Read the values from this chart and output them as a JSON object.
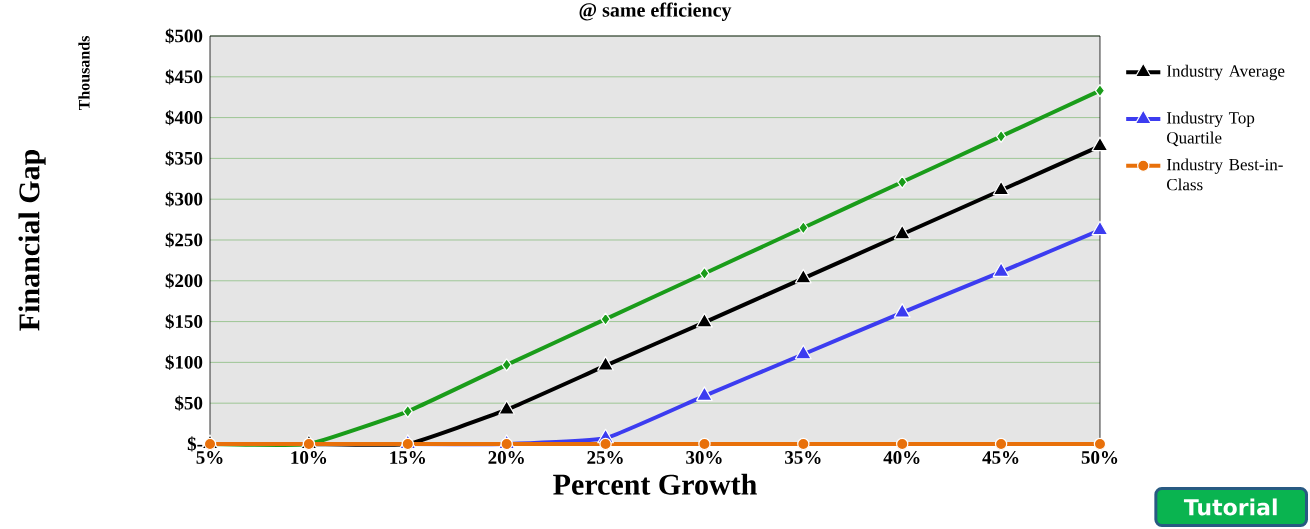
{
  "chart_data": {
    "type": "line",
    "title": "@ same efficiency",
    "xlabel": "Percent Growth",
    "ylabel": "Financial Gap",
    "annotations": [
      "Thousands",
      "Tutorial"
    ],
    "categories": [
      "5%",
      "10%",
      "15%",
      "20%",
      "25%",
      "30%",
      "35%",
      "40%",
      "45%",
      "50%"
    ],
    "series": [
      {
        "color": "#1a9c1a",
        "marker": "diamond",
        "values": [
          0,
          0,
          40,
          97,
          153,
          209,
          265,
          321,
          377,
          433
        ]
      },
      {
        "name": "Industry Average",
        "color": "#000000",
        "marker": "triangle",
        "values": [
          0,
          0,
          0,
          42,
          96,
          149,
          203,
          257,
          311,
          365
        ]
      },
      {
        "name": "Industry Top Quartile",
        "color": "#3c3cf0",
        "marker": "triangle",
        "values": [
          null,
          null,
          0,
          0,
          7,
          59,
          110,
          161,
          211,
          262
        ]
      },
      {
        "name": "Industry Best-in-Class",
        "color": "#e8700a",
        "marker": "circle",
        "values": [
          0,
          0,
          0,
          0,
          0,
          0,
          0,
          0,
          0,
          0
        ]
      }
    ],
    "ylim": [
      0,
      500
    ],
    "yticks": [
      {
        "value": 0,
        "label": "$-"
      },
      {
        "value": 50,
        "label": "$50"
      },
      {
        "value": 100,
        "label": "$100"
      },
      {
        "value": 150,
        "label": "$150"
      },
      {
        "value": 200,
        "label": "$200"
      },
      {
        "value": 250,
        "label": "$250"
      },
      {
        "value": 300,
        "label": "$300"
      },
      {
        "value": 350,
        "label": "$350"
      },
      {
        "value": 400,
        "label": "$400"
      },
      {
        "value": 450,
        "label": "$450"
      },
      {
        "value": 500,
        "label": "$500"
      }
    ],
    "grid": "y",
    "legend": "right",
    "line_style": "solid"
  }
}
